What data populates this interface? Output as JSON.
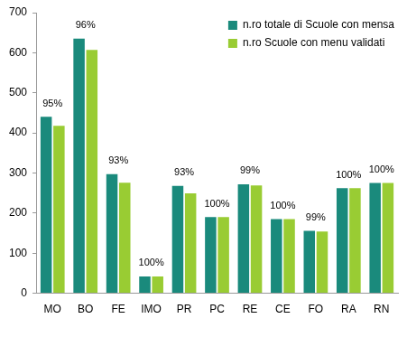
{
  "chart_data": {
    "type": "bar",
    "categories": [
      "MO",
      "BO",
      "FE",
      "IMO",
      "PR",
      "PC",
      "RE",
      "CE",
      "FO",
      "RA",
      "RN"
    ],
    "series": [
      {
        "name": "n.ro totale di Scuole con mensa",
        "color": "#1a8a7c",
        "values": [
          440,
          635,
          297,
          42,
          268,
          190,
          272,
          185,
          156,
          262,
          275
        ]
      },
      {
        "name": "n.ro Scuole con menu validati",
        "color": "#99cc33",
        "values": [
          418,
          607,
          276,
          42,
          249,
          190,
          269,
          185,
          154,
          262,
          275
        ]
      }
    ],
    "annotations": [
      "95%",
      "96%",
      "93%",
      "100%",
      "93%",
      "100%",
      "99%",
      "100%",
      "99%",
      "100%",
      "100%"
    ],
    "ylim": [
      0,
      700
    ],
    "yticks": [
      0,
      100,
      200,
      300,
      400,
      500,
      600,
      700
    ],
    "grid": false,
    "legend": "upper right"
  }
}
